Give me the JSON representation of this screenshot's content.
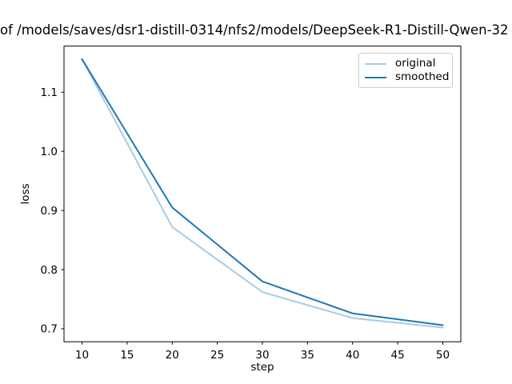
{
  "figure": {
    "background": "#ffffff",
    "spine_color": "#000000",
    "text_color": "#000000"
  },
  "chart_data": {
    "type": "line",
    "title": "of /models/saves/dsr1-distill-0314/nfs2/models/DeepSeek-R1-Distill-Qwen-32",
    "title_clipped": "title text is cut off at both left and right image edges",
    "xlabel": "step",
    "ylabel": "loss",
    "x": [
      10,
      20,
      30,
      40,
      50
    ],
    "series": [
      {
        "name": "original",
        "color": "#a9cbe4",
        "values": [
          1.156,
          0.872,
          0.762,
          0.718,
          0.702
        ]
      },
      {
        "name": "smoothed",
        "color": "#1f77b4",
        "values": [
          1.156,
          0.905,
          0.78,
          0.726,
          0.706
        ]
      }
    ],
    "xlim": [
      8,
      52
    ],
    "ylim": [
      0.678,
      1.178
    ],
    "xticks": [
      10,
      15,
      20,
      25,
      30,
      35,
      40,
      45,
      50
    ],
    "yticks": [
      0.7,
      0.8,
      0.9,
      1.0,
      1.1
    ],
    "grid": false,
    "legend": {
      "position": "upper right"
    }
  }
}
